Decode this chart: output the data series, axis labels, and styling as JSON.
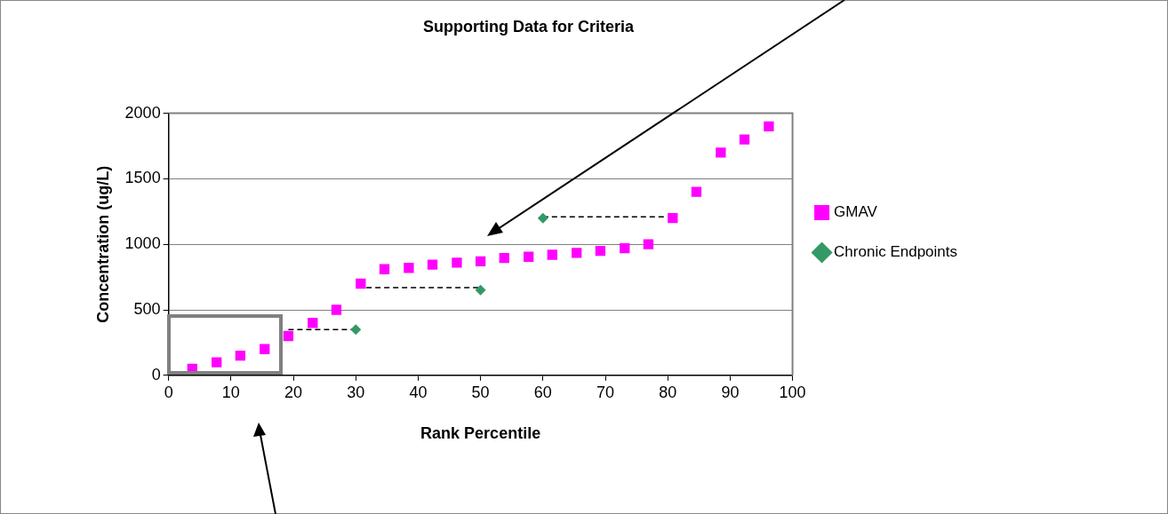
{
  "chart_data": {
    "type": "scatter",
    "title": "Supporting Data for Criteria",
    "xlabel": "Rank Percentile",
    "ylabel": "Concentration (ug/L)",
    "xlim": [
      0,
      100
    ],
    "xticks": [
      0,
      10,
      20,
      30,
      40,
      50,
      60,
      70,
      80,
      90,
      100
    ],
    "ylim": [
      0,
      2000
    ],
    "yticks": [
      0,
      500,
      1000,
      1500,
      2000
    ],
    "grid": "y",
    "legend": "right",
    "series": [
      {
        "name": "GMAV",
        "type": "scatter",
        "marker": "square",
        "color": "#ff00ff",
        "x": [
          3.8,
          7.7,
          11.5,
          15.4,
          19.2,
          23.1,
          26.9,
          30.8,
          34.6,
          38.5,
          42.3,
          46.2,
          50,
          53.8,
          57.7,
          61.5,
          65.4,
          69.2,
          73.1,
          76.9,
          80.8,
          84.6,
          88.5,
          92.3,
          96.2
        ],
        "values": [
          50,
          100,
          150,
          200,
          300,
          400,
          500,
          700,
          810,
          820,
          845,
          860,
          870,
          895,
          905,
          920,
          935,
          950,
          970,
          1000,
          1200,
          1400,
          1700,
          1800,
          1900
        ]
      },
      {
        "name": "Chronic Endpoints",
        "type": "scatter",
        "marker": "diamond",
        "color": "#339966",
        "x": [
          30,
          50,
          60
        ],
        "values": [
          350,
          650,
          1200
        ]
      },
      {
        "type": "line",
        "marker": "none",
        "line_style": "dashed",
        "color": "#000000",
        "x": [
          19.2,
          30
        ],
        "values": [
          350,
          350
        ]
      },
      {
        "type": "line",
        "marker": "none",
        "line_style": "dashed",
        "color": "#000000",
        "x": [
          31.7,
          50
        ],
        "values": [
          670,
          670
        ]
      },
      {
        "type": "line",
        "marker": "none",
        "line_style": "dashed",
        "color": "#000000",
        "x": [
          60,
          79.7
        ],
        "values": [
          1210,
          1210
        ]
      }
    ]
  }
}
